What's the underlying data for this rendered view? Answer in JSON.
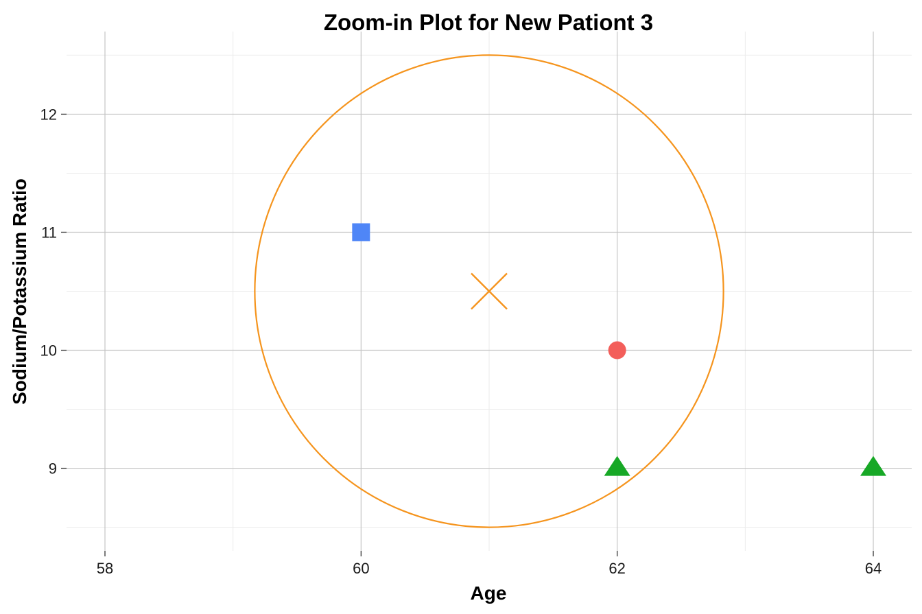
{
  "chart_data": {
    "type": "scatter",
    "title": "Zoom-in Plot for New Pationt 3",
    "xlabel": "Age",
    "ylabel": "Sodium/Potassium Ratio",
    "xlim": [
      57.7,
      64.3
    ],
    "ylim": [
      8.3,
      12.7
    ],
    "x_ticks": [
      58,
      60,
      62,
      64
    ],
    "x_tick_labels": [
      "58",
      "60",
      "62",
      "64"
    ],
    "y_ticks": [
      9,
      10,
      11,
      12
    ],
    "y_tick_labels": [
      "9",
      "10",
      "11",
      "12"
    ],
    "grid": true,
    "legend": "none",
    "points": [
      {
        "x": 60,
        "y": 11,
        "shape": "square",
        "color": "#4F86F7"
      },
      {
        "x": 62,
        "y": 10,
        "shape": "circle",
        "color": "#F35E5A"
      },
      {
        "x": 62,
        "y": 9,
        "shape": "triangle",
        "color": "#17A826"
      },
      {
        "x": 64,
        "y": 9,
        "shape": "triangle",
        "color": "#17A826"
      }
    ],
    "new_point": {
      "x": 61,
      "y": 10.5,
      "shape": "x",
      "color": "#F5941D"
    },
    "neighborhood_circle": {
      "cx": 61,
      "cy": 10.5,
      "rx": 1.83,
      "ry": 2.0,
      "color": "#F5941D"
    }
  }
}
